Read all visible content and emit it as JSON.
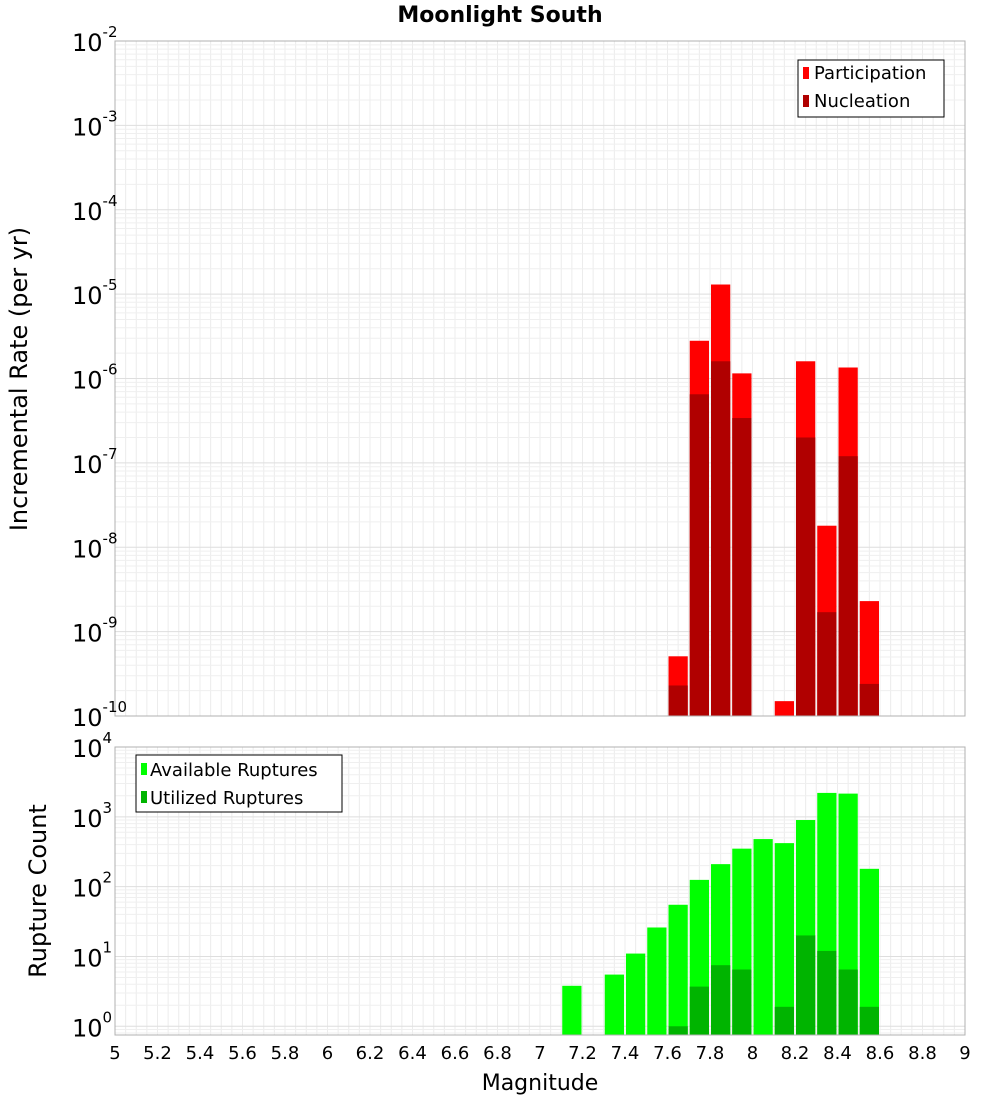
{
  "chart_data": [
    {
      "type": "bar",
      "title": "Moonlight South",
      "xlabel": "",
      "ylabel": "Incremental Rate (per yr)",
      "yscale": "log",
      "ylim": [
        1e-10,
        0.01
      ],
      "xlim": [
        5,
        9
      ],
      "bin_width": 0.1,
      "ytick_bases": [
        "10",
        "10",
        "10",
        "10",
        "10",
        "10",
        "10",
        "10",
        "10"
      ],
      "ytick_exponents": [
        "-10",
        "-9",
        "-8",
        "-7",
        "-6",
        "-5",
        "-4",
        "-3",
        "-2"
      ],
      "legend_position": "top-right",
      "colors": {
        "participation": "#ff0000",
        "nucleation": "#b00000"
      },
      "series": [
        {
          "name": "Participation",
          "x": [
            7.65,
            7.75,
            7.85,
            7.95,
            8.15,
            8.25,
            8.35,
            8.45,
            8.55
          ],
          "values": [
            5.1e-10,
            2.8e-06,
            1.3e-05,
            1.15e-06,
            1.5e-10,
            1.6e-06,
            1.8e-08,
            1.35e-06,
            2.3e-09
          ]
        },
        {
          "name": "Nucleation",
          "x": [
            7.65,
            7.75,
            7.85,
            7.95,
            8.25,
            8.35,
            8.45,
            8.55
          ],
          "values": [
            2.3e-10,
            6.5e-07,
            1.6e-06,
            3.4e-07,
            2e-07,
            1.7e-09,
            1.2e-07,
            2.4e-10
          ]
        }
      ]
    },
    {
      "type": "bar",
      "title": "",
      "xlabel": "Magnitude",
      "ylabel": "Rupture Count",
      "yscale": "log",
      "ylim": [
        0.75,
        10000
      ],
      "xlim": [
        5,
        9
      ],
      "bin_width": 0.1,
      "ytick_bases": [
        "10",
        "10",
        "10",
        "10",
        "10"
      ],
      "ytick_exponents": [
        "0",
        "1",
        "2",
        "3",
        "4"
      ],
      "xticks": [
        "5",
        "5.2",
        "5.4",
        "5.6",
        "5.8",
        "6",
        "6.2",
        "6.4",
        "6.6",
        "6.8",
        "7",
        "7.2",
        "7.4",
        "7.6",
        "7.8",
        "8",
        "8.2",
        "8.4",
        "8.6",
        "8.8",
        "9"
      ],
      "legend_position": "top-left",
      "colors": {
        "available": "#00ff00",
        "utilized": "#00b400"
      },
      "series": [
        {
          "name": "Available Ruptures",
          "x": [
            7.15,
            7.35,
            7.45,
            7.55,
            7.65,
            7.75,
            7.85,
            7.95,
            8.05,
            8.15,
            8.25,
            8.35,
            8.45,
            8.55
          ],
          "values": [
            3.8,
            5.5,
            11,
            26,
            55,
            125,
            210,
            350,
            480,
            420,
            900,
            2200,
            2150,
            180
          ]
        },
        {
          "name": "Utilized Ruptures",
          "x": [
            7.65,
            7.75,
            7.85,
            7.95,
            8.15,
            8.25,
            8.35,
            8.45,
            8.55
          ],
          "values": [
            1,
            3.7,
            7.5,
            6.5,
            1.9,
            20,
            12,
            6.5,
            1.9
          ]
        }
      ]
    }
  ]
}
